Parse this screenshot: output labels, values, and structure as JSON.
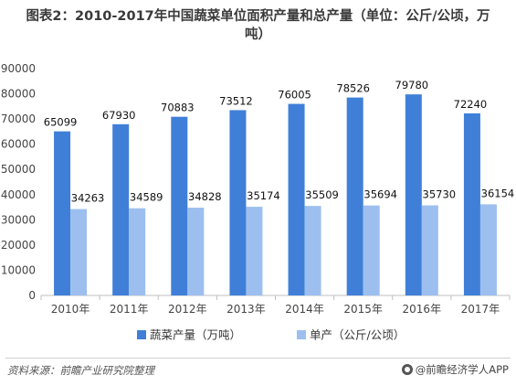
{
  "title_line1": "图表2：2010-2017年中国蔬菜单位面积产量和总产量（单位：公斤/公顷，万",
  "title_line2": "吨）",
  "footer": {
    "source": "资料来源：前瞻产业研究院整理",
    "brand": "@前瞻经济学人APP",
    "brand_icon": "logo-icon"
  },
  "colors": {
    "series1": "#3f7fd8",
    "series2": "#9dbff0"
  },
  "chart_data": {
    "type": "bar",
    "categories": [
      "2010年",
      "2011年",
      "2012年",
      "2013年",
      "2014年",
      "2015年",
      "2016年",
      "2017年"
    ],
    "series": [
      {
        "name": "蔬菜产量（万吨）",
        "values": [
          65099,
          67930,
          70883,
          73512,
          76005,
          78526,
          79780,
          72240
        ]
      },
      {
        "name": "单产（公斤/公顷）",
        "values": [
          34263,
          34589,
          34828,
          35174,
          35509,
          35694,
          35730,
          36154
        ]
      }
    ],
    "ylim": [
      0,
      90000
    ],
    "yticks": [
      "0",
      "10000",
      "20000",
      "30000",
      "40000",
      "50000",
      "60000",
      "70000",
      "80000",
      "90000"
    ],
    "grid": false,
    "legend": "bottom"
  }
}
